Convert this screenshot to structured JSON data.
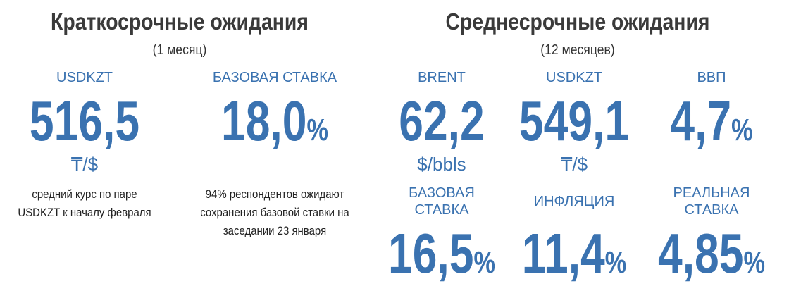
{
  "short_term": {
    "title": "Краткосрочные ожидания",
    "subtitle": "(1 месяц)",
    "items": [
      {
        "label": [
          "USDKZT"
        ],
        "value": "516,5",
        "unit": "₸/$",
        "unit_inline": false,
        "note": [
          "средний курс по паре",
          "USDKZT к началу февраля"
        ]
      },
      {
        "label": [
          "БАЗОВАЯ СТАВКА"
        ],
        "value": "18,0",
        "unit": "%",
        "unit_inline": true,
        "note": [
          "94% респондентов ожидают",
          "сохранения базовой ставки на",
          "заседании 23 января"
        ]
      }
    ]
  },
  "medium_term": {
    "title": "Среднесрочные ожидания",
    "subtitle": "(12 месяцев)",
    "items": [
      {
        "label": [
          "BRENT"
        ],
        "value": "62,2",
        "unit": "$/bbls",
        "unit_inline": false
      },
      {
        "label": [
          "USDKZT"
        ],
        "value": "549,1",
        "unit": "₸/$",
        "unit_inline": false
      },
      {
        "label": [
          "ВВП"
        ],
        "value": "4,7",
        "unit": "%",
        "unit_inline": true
      },
      {
        "label": [
          "БАЗОВАЯ",
          "СТАВКА"
        ],
        "value": "16,5",
        "unit": "%",
        "unit_inline": true
      },
      {
        "label": [
          "ИНФЛЯЦИЯ"
        ],
        "value": "11,4",
        "unit": "%",
        "unit_inline": true
      },
      {
        "label": [
          "РЕАЛЬНАЯ",
          "СТАВКА"
        ],
        "value": "4,85",
        "unit": "%",
        "unit_inline": true
      }
    ]
  }
}
